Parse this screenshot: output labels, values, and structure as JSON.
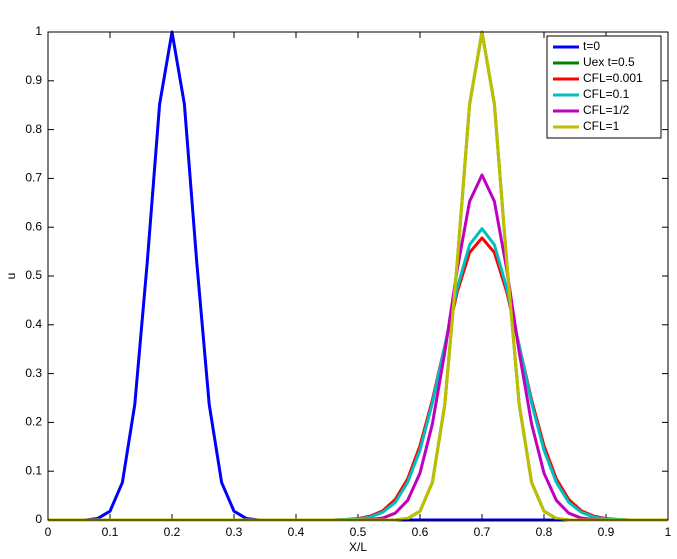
{
  "chart_data": {
    "type": "line",
    "xlabel": "X/L",
    "ylabel": "u",
    "x": [
      0,
      0.02,
      0.04,
      0.06,
      0.08,
      0.1,
      0.12,
      0.14,
      0.16,
      0.18,
      0.2,
      0.22,
      0.24,
      0.26,
      0.28,
      0.3,
      0.32,
      0.34,
      0.36,
      0.38,
      0.4,
      0.42,
      0.44,
      0.46,
      0.48,
      0.5,
      0.52,
      0.54,
      0.56,
      0.58,
      0.6,
      0.62,
      0.64,
      0.66,
      0.68,
      0.7,
      0.72,
      0.74,
      0.76,
      0.78,
      0.8,
      0.82,
      0.84,
      0.86,
      0.88,
      0.9,
      0.92,
      0.94,
      0.96,
      0.98,
      1
    ],
    "series": [
      {
        "name": "t=0",
        "color": "#0000ff",
        "values": [
          0,
          0,
          0,
          0,
          0.003,
          0.018,
          0.077,
          0.237,
          0.527,
          0.852,
          1,
          0.852,
          0.527,
          0.237,
          0.077,
          0.018,
          0.003,
          0,
          0,
          0,
          0,
          0,
          0,
          0,
          0,
          0,
          0,
          0,
          0,
          0,
          0,
          0,
          0,
          0,
          0,
          0,
          0,
          0,
          0,
          0,
          0,
          0,
          0,
          0,
          0,
          0,
          0,
          0,
          0,
          0,
          0
        ]
      },
      {
        "name": "Uex t=0.5",
        "color": "#008000",
        "values": [
          0,
          0,
          0,
          0,
          0,
          0,
          0,
          0,
          0,
          0,
          0,
          0,
          0,
          0,
          0,
          0,
          0,
          0,
          0,
          0,
          0,
          0,
          0,
          0,
          0,
          0,
          0,
          0,
          0,
          0.003,
          0.018,
          0.077,
          0.237,
          0.527,
          0.852,
          1,
          0.852,
          0.527,
          0.237,
          0.077,
          0.018,
          0.003,
          0,
          0,
          0,
          0,
          0,
          0,
          0,
          0,
          0
        ]
      },
      {
        "name": "CFL=0.001",
        "color": "#ff0000",
        "values": [
          0,
          0,
          0,
          0,
          0,
          0,
          0,
          0,
          0,
          0,
          0,
          0,
          0,
          0,
          0,
          0,
          0,
          0,
          0,
          0,
          0,
          0,
          0,
          0,
          0.001,
          0.003,
          0.008,
          0.019,
          0.042,
          0.084,
          0.152,
          0.246,
          0.357,
          0.467,
          0.548,
          0.578,
          0.548,
          0.467,
          0.357,
          0.246,
          0.152,
          0.084,
          0.042,
          0.019,
          0.008,
          0.003,
          0.001,
          0,
          0,
          0,
          0
        ]
      },
      {
        "name": "CFL=0.1",
        "color": "#00bfbf",
        "values": [
          0,
          0,
          0,
          0,
          0,
          0,
          0,
          0,
          0,
          0,
          0,
          0,
          0,
          0,
          0,
          0,
          0,
          0,
          0,
          0,
          0,
          0,
          0,
          0,
          0.001,
          0.002,
          0.006,
          0.016,
          0.036,
          0.077,
          0.143,
          0.24,
          0.357,
          0.475,
          0.564,
          0.597,
          0.564,
          0.475,
          0.357,
          0.24,
          0.143,
          0.077,
          0.036,
          0.016,
          0.006,
          0.002,
          0.001,
          0,
          0,
          0,
          0
        ]
      },
      {
        "name": "CFL=1/2",
        "color": "#bf00bf",
        "values": [
          0,
          0,
          0,
          0,
          0,
          0,
          0,
          0,
          0,
          0,
          0,
          0,
          0,
          0,
          0,
          0,
          0,
          0,
          0,
          0,
          0,
          0,
          0,
          0,
          0,
          0,
          0.001,
          0.004,
          0.014,
          0.04,
          0.096,
          0.197,
          0.344,
          0.513,
          0.653,
          0.707,
          0.653,
          0.513,
          0.344,
          0.197,
          0.096,
          0.04,
          0.014,
          0.004,
          0.001,
          0,
          0,
          0,
          0,
          0,
          0
        ]
      },
      {
        "name": "CFL=1",
        "color": "#bfbf00",
        "values": [
          0,
          0,
          0,
          0,
          0,
          0,
          0,
          0,
          0,
          0,
          0,
          0,
          0,
          0,
          0,
          0,
          0,
          0,
          0,
          0,
          0,
          0,
          0,
          0,
          0,
          0,
          0,
          0,
          0,
          0.003,
          0.018,
          0.077,
          0.237,
          0.527,
          0.852,
          1,
          0.852,
          0.527,
          0.237,
          0.077,
          0.018,
          0.003,
          0,
          0,
          0,
          0,
          0,
          0,
          0,
          0,
          0
        ]
      }
    ],
    "xlim": [
      0,
      1
    ],
    "ylim": [
      0,
      1
    ],
    "xticks": [
      0,
      0.1,
      0.2,
      0.3,
      0.4,
      0.5,
      0.6,
      0.7,
      0.8,
      0.9,
      1
    ],
    "yticks": [
      0,
      0.1,
      0.2,
      0.3,
      0.4,
      0.5,
      0.6,
      0.7,
      0.8,
      0.9,
      1
    ],
    "grid": false,
    "legend": "upper right"
  }
}
